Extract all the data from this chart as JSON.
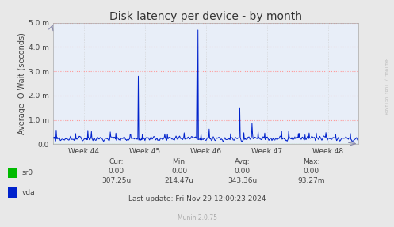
{
  "title": "Disk latency per device - by month",
  "ylabel": "Average IO Wait (seconds)",
  "background_color": "#e8e8e8",
  "plot_bg_color": "#e8eef8",
  "grid_color": "#ff9999",
  "x_labels": [
    "Week 44",
    "Week 45",
    "Week 46",
    "Week 47",
    "Week 48"
  ],
  "ylim": [
    0,
    0.005
  ],
  "yticks": [
    0.0,
    0.001,
    0.002,
    0.003,
    0.004,
    0.005
  ],
  "ytick_labels": [
    "0.0",
    "1.0 m",
    "2.0 m",
    "3.0 m",
    "4.0 m",
    "5.0 m"
  ],
  "sr0_color": "#00bb00",
  "vda_color": "#0022cc",
  "table_headers": [
    "Cur:",
    "Min:",
    "Avg:",
    "Max:"
  ],
  "table_sr0": [
    "0.00",
    "0.00",
    "0.00",
    "0.00"
  ],
  "table_vda": [
    "307.25u",
    "214.47u",
    "343.36u",
    "93.27m"
  ],
  "last_update": "Last update: Fri Nov 29 12:00:23 2024",
  "munin_version": "Munin 2.0.75",
  "rrdtool_label": "RRDTOOL / TOBI OETIKER",
  "title_fontsize": 10,
  "axis_fontsize": 7,
  "tick_fontsize": 6.5,
  "table_fontsize": 6.5
}
